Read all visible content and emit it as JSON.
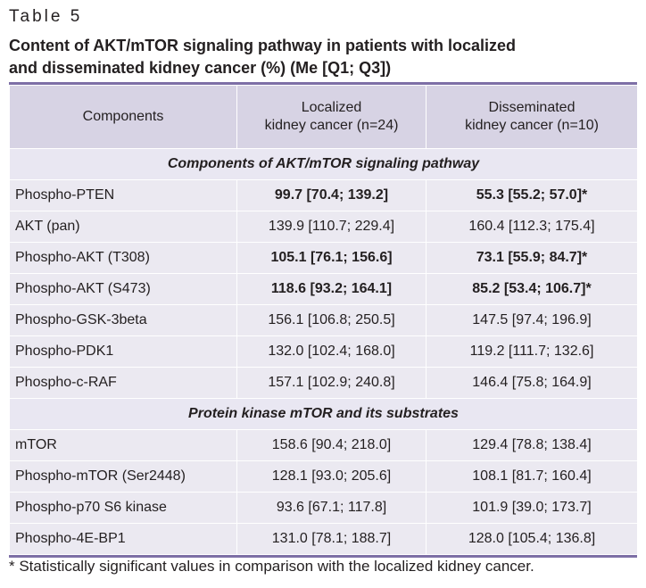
{
  "table_label": "Table 5",
  "caption_line1": "Content of AKT/mTOR signaling pathway in patients with localized",
  "caption_line2": "and disseminated kidney cancer (%) (Me [Q1; Q3])",
  "columns": {
    "components": "Components",
    "localized_l1": "Localized",
    "localized_l2": "kidney cancer (n=24)",
    "disseminated_l1": "Disseminated",
    "disseminated_l2": "kidney cancer (n=10)"
  },
  "sections": [
    {
      "title": "Components of AKT/mTOR signaling pathway",
      "rows": [
        {
          "name": "Phospho-PTEN",
          "localized": "99.7 [70.4; 139.2]",
          "disseminated": "55.3 [55.2; 57.0]*",
          "bold": true
        },
        {
          "name": "AKT (pan)",
          "localized": "139.9 [110.7; 229.4]",
          "disseminated": "160.4 [112.3; 175.4]",
          "bold": false
        },
        {
          "name": "Phospho-AKT (T308)",
          "localized": "105.1 [76.1; 156.6]",
          "disseminated": "73.1 [55.9; 84.7]*",
          "bold": true
        },
        {
          "name": "Phospho-AKT (S473)",
          "localized": "118.6 [93.2; 164.1]",
          "disseminated": "85.2 [53.4; 106.7]*",
          "bold": true
        },
        {
          "name": "Phospho-GSK-3beta",
          "localized": "156.1 [106.8; 250.5]",
          "disseminated": "147.5 [97.4; 196.9]",
          "bold": false
        },
        {
          "name": "Phospho-PDK1",
          "localized": "132.0 [102.4; 168.0]",
          "disseminated": "119.2 [111.7; 132.6]",
          "bold": false
        },
        {
          "name": "Phospho-c-RAF",
          "localized": "157.1 [102.9; 240.8]",
          "disseminated": "146.4 [75.8; 164.9]",
          "bold": false
        }
      ]
    },
    {
      "title": "Protein kinase mTOR and its substrates",
      "rows": [
        {
          "name": "mTOR",
          "localized": "158.6 [90.4; 218.0]",
          "disseminated": "129.4 [78.8; 138.4]",
          "bold": false
        },
        {
          "name": "Phospho-mTOR (Ser2448)",
          "localized": "128.1 [93.0; 205.6]",
          "disseminated": "108.1 [81.7; 160.4]",
          "bold": false
        },
        {
          "name": "Phospho-p70 S6 kinase",
          "localized": "93.6 [67.1; 117.8]",
          "disseminated": "101.9 [39.0; 173.7]",
          "bold": false
        },
        {
          "name": "Phospho-4E-BP1",
          "localized": "131.0 [78.1; 188.7]",
          "disseminated": "128.0 [105.4; 136.8]",
          "bold": false
        }
      ]
    }
  ],
  "footnote": "* Statistically significant values in comparison with the localized kidney cancer."
}
